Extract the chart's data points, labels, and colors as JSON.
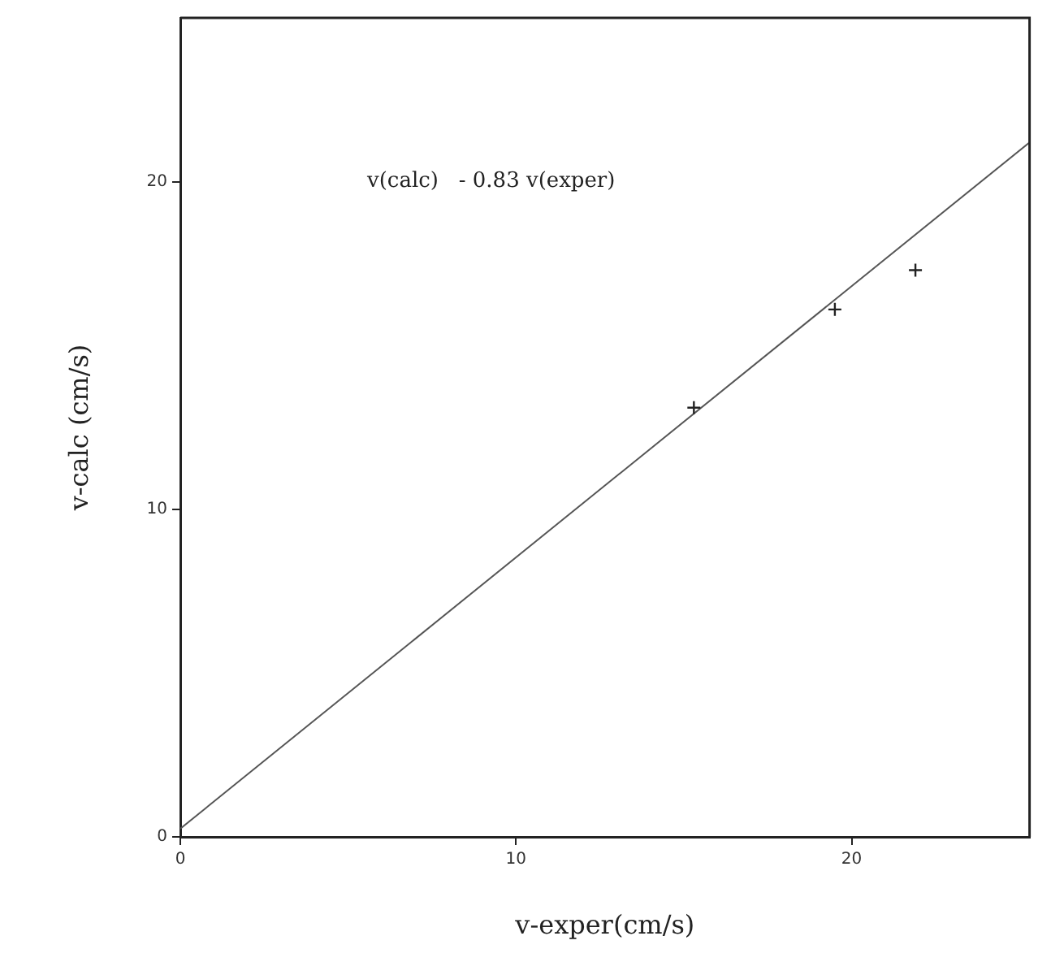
{
  "chart_data": {
    "type": "scatter",
    "xlabel": "v-exper(cm/s)",
    "ylabel": "v-calc (cm/s)",
    "xlim": [
      0,
      25.3
    ],
    "ylim": [
      0,
      25
    ],
    "xticks": [
      0,
      10,
      20
    ],
    "yticks": [
      0,
      10,
      20
    ],
    "grid": false,
    "legend": false,
    "marker": "cross",
    "annotations": [
      "v(calc)   - 0.83 v(exper)"
    ],
    "series": [
      {
        "color": "#222222",
        "x": [
          15.3,
          19.5,
          21.9
        ],
        "values": [
          13.1,
          16.1,
          17.3
        ]
      },
      {
        "type": "line",
        "color": "#555555",
        "x": [
          0,
          25.3
        ],
        "values": [
          0.25,
          21.2
        ],
        "marker": "none",
        "line_style": "solid"
      }
    ]
  }
}
